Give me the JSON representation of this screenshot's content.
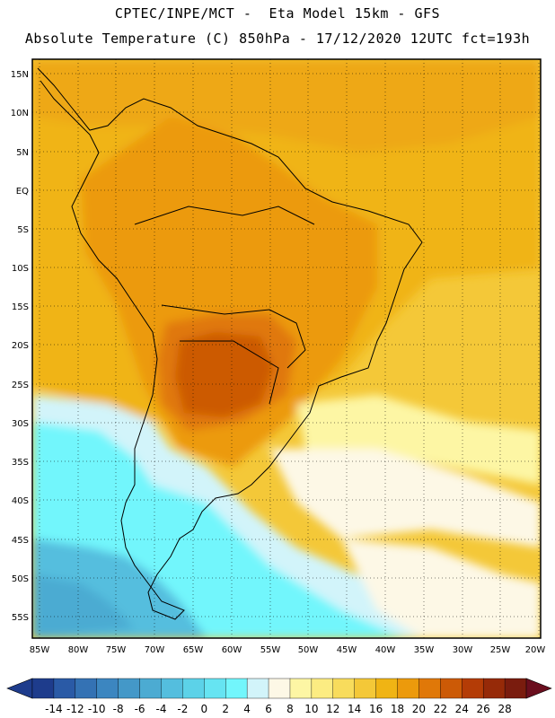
{
  "header": {
    "line1": "CPTEC/INPE/MCT -  Eta Model 15km - GFS",
    "line2": "Absolute Temperature (C) 850hPa - 17/12/2020 12UTC fct=193h"
  },
  "map": {
    "lat_labels": [
      "15N",
      "10N",
      "5N",
      "EQ",
      "5S",
      "10S",
      "15S",
      "20S",
      "25S",
      "30S",
      "35S",
      "40S",
      "45S",
      "50S",
      "55S"
    ],
    "lon_labels": [
      "85W",
      "80W",
      "75W",
      "70W",
      "65W",
      "60W",
      "55W",
      "50W",
      "45W",
      "40W",
      "35W",
      "30W",
      "25W",
      "20W"
    ]
  },
  "colorbar": {
    "labels": [
      "-14",
      "-12",
      "-10",
      "-8",
      "-6",
      "-4",
      "-2",
      "0",
      "2",
      "4",
      "6",
      "8",
      "10",
      "12",
      "14",
      "16",
      "18",
      "20",
      "22",
      "24",
      "26",
      "28"
    ],
    "colors": [
      "#1e3c8c",
      "#2a5aa6",
      "#3472b4",
      "#3c86c0",
      "#4498c8",
      "#4cabd2",
      "#54bede",
      "#5cd2e8",
      "#66e4f2",
      "#72f6fc",
      "#d2f4fa",
      "#fdf8e6",
      "#fdf6a4",
      "#fcec82",
      "#f8dc5c",
      "#f4c838",
      "#f0b414",
      "#ec9a0c",
      "#e07808",
      "#cc5a06",
      "#b43c06",
      "#962a08",
      "#7a1c0e"
    ]
  }
}
